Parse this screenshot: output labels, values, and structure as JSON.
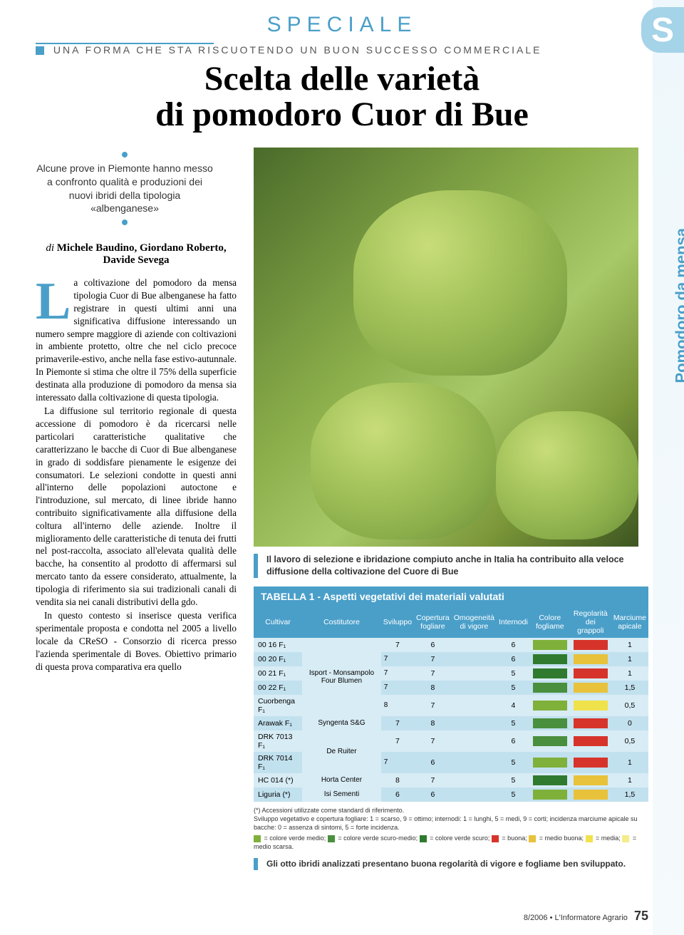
{
  "section_label": "SPECIALE",
  "tab_letter": "S",
  "vertical_label": "Pomodoro da mensa",
  "kicker": "UNA FORMA CHE STA RISCUOTENDO UN BUON SUCCESSO COMMERCIALE",
  "headline": {
    "line1": "Scelta delle varietà",
    "line2": "di pomodoro Cuor di Bue"
  },
  "lead": "Alcune prove in Piemonte hanno messo a confronto qualità e produzioni dei nuovi ibridi della tipologia «albenganese»",
  "byline": {
    "prefix": "di ",
    "names": "Michele Baudino, Giordano Roberto, Davide Sevega"
  },
  "body": {
    "dropcap": "L",
    "p1": "a coltivazione del pomodoro da mensa tipologia Cuor di Bue albenganese ha fatto registrare in questi ultimi anni una significativa diffusione interessando un numero sempre maggiore di aziende con coltivazioni in ambiente protetto, oltre che nel ciclo precoce primaverile-estivo, anche nella fase estivo-autunnale. In Piemonte si stima che oltre il 75% della superficie destinata alla produzione di pomodoro da mensa sia interessato dalla coltivazione di questa tipologia.",
    "p2": "La diffusione sul territorio regionale di questa accessione di pomodoro è da ricercarsi nelle particolari caratteristiche qualitative che caratterizzano le bacche di Cuor di Bue albenganese in grado di soddisfare pienamente le esigenze dei consumatori. Le selezioni condotte in questi anni all'interno delle popolazioni autoctone e l'introduzione, sul mercato, di linee ibride hanno contribuito significativamente alla diffusione della coltura all'interno delle aziende. Inoltre il miglioramento delle caratteristiche di tenuta dei frutti nel post-raccolta, associato all'elevata qualità delle bacche, ha consentito al prodotto di affermarsi sul mercato tanto da essere considerato, attualmente, la tipologia di riferimento sia sui tradizionali canali di vendita sia nei canali distributivi della gdo.",
    "p3": "In questo contesto si inserisce questa verifica sperimentale proposta e condotta nel 2005 a livello locale da CReSO - Consorzio di ricerca presso l'azienda sperimentale di Boves. Obiettivo primario di questa prova comparativa era quello"
  },
  "image_caption": "Il lavoro di selezione e ibridazione compiuto anche in Italia ha contribuito alla veloce diffusione della coltivazione del Cuore di Bue",
  "table": {
    "title": "TABELLA 1 - Aspetti vegetativi dei materiali valutati",
    "columns": [
      "Cultivar",
      "Costitutore",
      "Sviluppo",
      "Copertura fogliare",
      "Omogeneità di vigore",
      "Internodi",
      "Colore fogliame",
      "Regolarità dei grappoli",
      "Marciume apicale"
    ],
    "costitutore_rowspans": [
      {
        "start": 0,
        "span": 5,
        "text": "Isport - Monsampolo Four Blumen"
      },
      {
        "start": 5,
        "span": 1,
        "text": "Syngenta S&G"
      },
      {
        "start": 6,
        "span": 2,
        "text": "De Ruiter"
      },
      {
        "start": 8,
        "span": 1,
        "text": "Horta Center"
      },
      {
        "start": 9,
        "span": 1,
        "text": "Isi Sementi"
      }
    ],
    "rows": [
      {
        "cultivar": "00 16 F₁",
        "sviluppo": 7,
        "copertura": 6,
        "omog": "",
        "internodi": 6,
        "colore": "#7fb03a",
        "regolarita": "#d6342b",
        "marciume": 1
      },
      {
        "cultivar": "00 20 F₁",
        "sviluppo": 7,
        "copertura": 7,
        "omog": "",
        "internodi": 6,
        "colore": "#2f7a2f",
        "regolarita": "#e8c23a",
        "marciume": 1
      },
      {
        "cultivar": "00 21 F₁",
        "sviluppo": 7,
        "copertura": 7,
        "omog": "",
        "internodi": 5,
        "colore": "#2f7a2f",
        "regolarita": "#d6342b",
        "marciume": 1
      },
      {
        "cultivar": "00 22 F₁",
        "sviluppo": 7,
        "copertura": 8,
        "omog": "",
        "internodi": 5,
        "colore": "#4a8f3d",
        "regolarita": "#e8c23a",
        "marciume": "1,5"
      },
      {
        "cultivar": "Cuorbenga F₁",
        "sviluppo": 8,
        "copertura": 7,
        "omog": "",
        "internodi": 4,
        "colore": "#7fb03a",
        "regolarita": "#f0e24a",
        "marciume": "0,5"
      },
      {
        "cultivar": "Arawak F₁",
        "sviluppo": 7,
        "copertura": 8,
        "omog": "",
        "internodi": 5,
        "colore": "#4a8f3d",
        "regolarita": "#d6342b",
        "marciume": 0
      },
      {
        "cultivar": "DRK 7013 F₁",
        "sviluppo": 7,
        "copertura": 7,
        "omog": "",
        "internodi": 6,
        "colore": "#4a8f3d",
        "regolarita": "#d6342b",
        "marciume": "0,5"
      },
      {
        "cultivar": "DRK 7014 F₁",
        "sviluppo": 7,
        "copertura": 6,
        "omog": "",
        "internodi": 5,
        "colore": "#7fb03a",
        "regolarita": "#d6342b",
        "marciume": 1
      },
      {
        "cultivar": "HC 014 (*)",
        "sviluppo": 8,
        "copertura": 7,
        "omog": "",
        "internodi": 5,
        "colore": "#2f7a2f",
        "regolarita": "#e8c23a",
        "marciume": 1
      },
      {
        "cultivar": "Liguria (*)",
        "sviluppo": 6,
        "copertura": 6,
        "omog": "",
        "internodi": 5,
        "colore": "#7fb03a",
        "regolarita": "#e8c23a",
        "marciume": "1,5"
      }
    ],
    "footnotes": [
      "(*) Accessioni utilizzate come standard di riferimento.",
      "Sviluppo vegetativo e copertura fogliare: 1 = scarso, 9 = ottimo; internodi: 1 = lunghi, 5 = medi, 9 = corti; incidenza marciume apicale su bacche: 0 = assenza di sintomi, 5 = forte incidenza."
    ],
    "legend": [
      {
        "color": "#7fb03a",
        "label": "= colore verde medio;"
      },
      {
        "color": "#4a8f3d",
        "label": "= colore verde scuro-medio;"
      },
      {
        "color": "#2f7a2f",
        "label": "= colore verde scuro;"
      },
      {
        "color": "#d6342b",
        "label": "= buona;"
      },
      {
        "color": "#e8c23a",
        "label": "= medio buona;"
      },
      {
        "color": "#f0e24a",
        "label": "= media;"
      },
      {
        "color": "#f5ec8a",
        "label": "= medio scarsa."
      }
    ],
    "caption": "Gli otto ibridi analizzati presentano buona regolarità di vigore e fogliame ben sviluppato."
  },
  "footer": {
    "issue": "8/2006",
    "publication": "L'Informatore Agrario",
    "page": "75"
  },
  "colors": {
    "accent": "#4a9fc9",
    "table_row_odd": "#d8ecf5",
    "table_row_even": "#c2e1ef"
  }
}
